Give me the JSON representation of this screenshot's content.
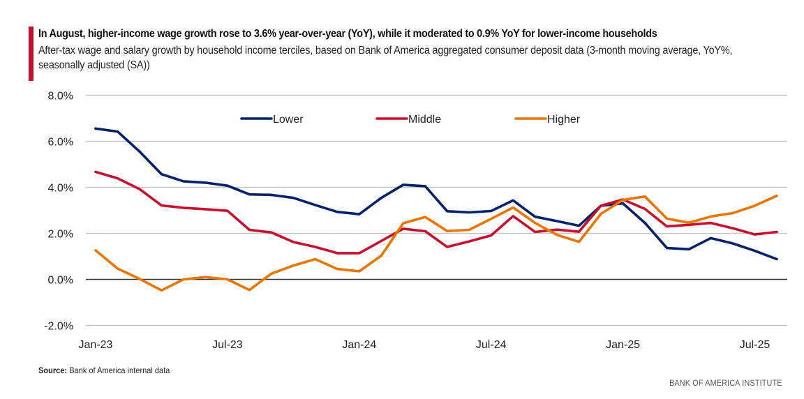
{
  "header": {
    "title": "In August, higher-income wage growth rose to 3.6% year-over-year (YoY), while it moderated to 0.9% YoY for lower-income households",
    "subtitle": "After-tax wage and salary growth by household income terciles, based on Bank of America aggregated consumer deposit data (3-month moving average, YoY%, seasonally adjusted (SA))",
    "accent_color": "#c8102e"
  },
  "footer": {
    "source_label": "Source:",
    "source_text": "Bank of America internal data",
    "brand": "BANK OF AMERICA INSTITUTE"
  },
  "chart_data": {
    "type": "line",
    "title": "In August, higher-income wage growth rose to 3.6% year-over-year (YoY), while it moderated to 0.9% YoY for lower-income households",
    "xlabel": "",
    "ylabel": "",
    "ylim": [
      -2.0,
      8.0
    ],
    "yticks": [
      -2.0,
      0.0,
      2.0,
      4.0,
      6.0,
      8.0
    ],
    "ytick_labels": [
      "-2.0%",
      "0.0%",
      "2.0%",
      "4.0%",
      "6.0%",
      "8.0%"
    ],
    "grid": true,
    "legend_position": "top-center",
    "x": [
      "Jan-23",
      "Feb-23",
      "Mar-23",
      "Apr-23",
      "May-23",
      "Jun-23",
      "Jul-23",
      "Aug-23",
      "Sep-23",
      "Oct-23",
      "Nov-23",
      "Dec-23",
      "Jan-24",
      "Feb-24",
      "Mar-24",
      "Apr-24",
      "May-24",
      "Jun-24",
      "Jul-24",
      "Aug-24",
      "Sep-24",
      "Oct-24",
      "Nov-24",
      "Dec-24",
      "Jan-25",
      "Feb-25",
      "Mar-25",
      "Apr-25",
      "May-25",
      "Jun-25",
      "Jul-25",
      "Aug-25"
    ],
    "xtick_labels": [
      {
        "index": 0,
        "label": "Jan-23"
      },
      {
        "index": 6,
        "label": "Jul-23"
      },
      {
        "index": 12,
        "label": "Jan-24"
      },
      {
        "index": 18,
        "label": "Jul-24"
      },
      {
        "index": 24,
        "label": "Jan-25"
      },
      {
        "index": 30,
        "label": "Jul-25"
      }
    ],
    "series": [
      {
        "name": "Lower",
        "color": "#012169",
        "values": [
          6.55,
          6.42,
          5.55,
          4.57,
          4.26,
          4.2,
          4.07,
          3.69,
          3.67,
          3.54,
          3.23,
          2.93,
          2.83,
          3.54,
          4.11,
          4.05,
          2.96,
          2.91,
          2.97,
          3.43,
          2.72,
          2.53,
          2.33,
          3.2,
          3.3,
          2.45,
          1.36,
          1.31,
          1.79,
          1.56,
          1.24,
          0.88
        ]
      },
      {
        "name": "Middle",
        "color": "#c8102e",
        "values": [
          4.67,
          4.39,
          3.92,
          3.21,
          3.11,
          3.05,
          2.98,
          2.15,
          2.04,
          1.62,
          1.41,
          1.14,
          1.14,
          1.67,
          2.2,
          2.09,
          1.41,
          1.65,
          1.91,
          2.75,
          2.06,
          2.16,
          2.07,
          3.2,
          3.47,
          3.06,
          2.3,
          2.37,
          2.45,
          2.22,
          1.95,
          2.06
        ]
      },
      {
        "name": "Higher",
        "color": "#ea7600",
        "values": [
          1.26,
          0.47,
          0.02,
          -0.48,
          0.0,
          0.1,
          0.0,
          -0.46,
          0.25,
          0.6,
          0.88,
          0.45,
          0.35,
          1.03,
          2.44,
          2.71,
          2.1,
          2.15,
          2.63,
          3.12,
          2.45,
          1.93,
          1.63,
          2.85,
          3.45,
          3.6,
          2.64,
          2.46,
          2.73,
          2.88,
          3.2,
          3.63
        ]
      }
    ]
  }
}
